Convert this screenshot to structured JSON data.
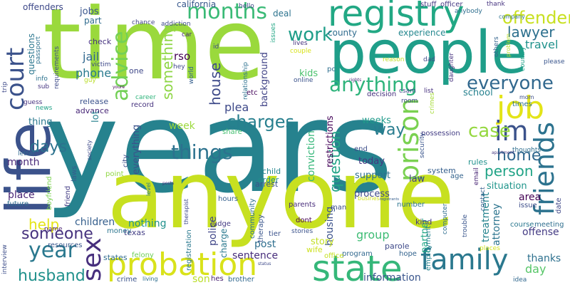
{
  "palette": [
    "#440154",
    "#482878",
    "#3e4989",
    "#31688e",
    "#26828e",
    "#1f9e89",
    "#35b779",
    "#6ece58",
    "#b5de2b",
    "#fde725"
  ],
  "words": [
    {
      "text": "years",
      "color": "#26828e"
    },
    {
      "text": "time",
      "color": "#9ad93c"
    },
    {
      "text": "anyone",
      "color": "#c7e020"
    },
    {
      "text": "people",
      "color": "#1f9e89"
    },
    {
      "text": "life",
      "color": "#3b528b"
    },
    {
      "text": "registry",
      "color": "#22a884"
    },
    {
      "text": "state",
      "color": "#35b779"
    },
    {
      "text": "probation",
      "color": "#d9e21a"
    },
    {
      "text": "family",
      "color": "#2a788e"
    },
    {
      "text": "job",
      "color": "#e3e418"
    },
    {
      "text": "friends",
      "color": "#2c728e"
    },
    {
      "text": "prison",
      "color": "#7ad151"
    },
    {
      "text": "im",
      "color": "#3b528b"
    },
    {
      "text": "sex",
      "color": "#472f7d"
    },
    {
      "text": "court",
      "color": "#3b528b"
    },
    {
      "text": "months",
      "color": "#3aba76"
    },
    {
      "text": "advice",
      "color": "#73d056"
    },
    {
      "text": "year",
      "color": "#2a788e"
    },
    {
      "text": "things",
      "color": "#2c728e"
    },
    {
      "text": "anything",
      "color": "#2fb47c"
    },
    {
      "text": "work",
      "color": "#1f9e89"
    },
    {
      "text": "offender",
      "color": "#c8e020"
    },
    {
      "text": "everyone",
      "color": "#31688e"
    },
    {
      "text": "case",
      "color": "#95d840"
    },
    {
      "text": "charges",
      "color": "#277f8e"
    },
    {
      "text": "someone",
      "color": "#46327e"
    },
    {
      "text": "husband",
      "color": "#21918c"
    },
    {
      "text": "home",
      "color": "#31688e"
    },
    {
      "text": "lawyer",
      "color": "#2d708e"
    },
    {
      "text": "person",
      "color": "#20a386"
    },
    {
      "text": "days",
      "color": "#2c728e"
    },
    {
      "text": "way",
      "color": "#287c8e"
    },
    {
      "text": "house",
      "color": "#3e4a89"
    },
    {
      "text": "something",
      "color": "#8ed645"
    },
    {
      "text": "help",
      "color": "#e5e419"
    },
    {
      "text": "travel",
      "color": "#20928c"
    },
    {
      "text": "question",
      "color": "#20a386"
    },
    {
      "text": "jail",
      "color": "#31688e"
    },
    {
      "text": "phone",
      "color": "#297a8e"
    },
    {
      "text": "rso",
      "color": "#440154"
    },
    {
      "text": "week",
      "color": "#9bd93c"
    },
    {
      "text": "plea",
      "color": "#3e4989"
    },
    {
      "text": "month",
      "color": "#482878"
    },
    {
      "text": "place",
      "color": "#482475"
    },
    {
      "text": "nothing",
      "color": "#21918c"
    },
    {
      "text": "children",
      "color": "#355f8d"
    },
    {
      "text": "group",
      "color": "#3dbc74"
    },
    {
      "text": "day",
      "color": "#56c667"
    },
    {
      "text": "thanks",
      "color": "#2d708e"
    },
    {
      "text": "information",
      "color": "#39558c"
    },
    {
      "text": "post",
      "color": "#2e6e8e"
    },
    {
      "text": "sentence",
      "color": "#472d7b"
    },
    {
      "text": "police",
      "color": "#404688"
    },
    {
      "text": "son",
      "color": "#bade28"
    },
    {
      "text": "treatment",
      "color": "#25848e"
    },
    {
      "text": "offense",
      "color": "#443b84"
    },
    {
      "text": "area",
      "color": "#440154"
    },
    {
      "text": "attorney",
      "color": "#2b748e"
    },
    {
      "text": "partner",
      "color": "#22a785"
    },
    {
      "text": "conviction",
      "color": "#35b779"
    },
    {
      "text": "housing",
      "color": "#3b528b"
    },
    {
      "text": "restrictions",
      "color": "#450559"
    },
    {
      "text": "today",
      "color": "#453882"
    },
    {
      "text": "story",
      "color": "#c2df23"
    },
    {
      "text": "support",
      "color": "#2d708e"
    },
    {
      "text": "weeks",
      "color": "#1f9a8a"
    },
    {
      "text": "process",
      "color": "#3f4889"
    },
    {
      "text": "law",
      "color": "#433e85"
    },
    {
      "text": "situation",
      "color": "#1f958b"
    },
    {
      "text": "school",
      "color": "#26818e"
    },
    {
      "text": "thing",
      "color": "#2a788e"
    },
    {
      "text": "jobs",
      "color": "#39558c"
    },
    {
      "text": "background",
      "color": "#414487"
    },
    {
      "text": "kids",
      "color": "#4ac16d"
    },
    {
      "text": "everything",
      "color": "#3b528b"
    },
    {
      "text": "experience",
      "color": "#24878e"
    },
    {
      "text": "county",
      "color": "#2f6c8e"
    },
    {
      "text": "deal",
      "color": "#2c738e"
    },
    {
      "text": "questions",
      "color": "#2a768e"
    },
    {
      "text": "offenders",
      "color": "#3e4989"
    },
    {
      "text": "california",
      "color": "#38588c"
    },
    {
      "text": "part",
      "color": "#2f6b8e"
    },
    {
      "text": "check",
      "color": "#46327e"
    },
    {
      "text": "advance",
      "color": "#482677"
    },
    {
      "text": "release",
      "color": "#3b528b"
    },
    {
      "text": "record",
      "color": "#46327e"
    },
    {
      "text": "wife",
      "color": "#cde11d"
    },
    {
      "text": "charge",
      "color": "#2a788e"
    },
    {
      "text": "parole",
      "color": "#3e4989"
    },
    {
      "text": "texas",
      "color": "#433e85"
    },
    {
      "text": "states",
      "color": "#2f6b8e"
    },
    {
      "text": "crime",
      "color": "#3a538b"
    },
    {
      "text": "felony",
      "color": "#6ece58"
    },
    {
      "text": "resources",
      "color": "#39568c"
    },
    {
      "text": "arrest",
      "color": "#3a538b"
    },
    {
      "text": "child",
      "color": "#24868e"
    },
    {
      "text": "order",
      "color": "#21908d"
    },
    {
      "text": "system",
      "color": "#355f8d"
    },
    {
      "text": "rules",
      "color": "#21918c"
    },
    {
      "text": "kind",
      "color": "#443983"
    },
    {
      "text": "employment",
      "color": "#25838e"
    },
    {
      "text": "man",
      "color": "#3d4e8a"
    },
    {
      "text": "parents",
      "color": "#472c7a"
    },
    {
      "text": "hope",
      "color": "#33638d"
    },
    {
      "text": "program",
      "color": "#31688e"
    },
    {
      "text": "registration",
      "color": "#2a788e"
    },
    {
      "text": "community",
      "color": "#2e6f8e"
    },
    {
      "text": "therapy",
      "color": "#39558c"
    },
    {
      "text": "judge",
      "color": "#443a83"
    },
    {
      "text": "money",
      "color": "#2b758e"
    },
    {
      "text": "future",
      "color": "#2f6c8e"
    },
    {
      "text": "friend",
      "color": "#433d84"
    },
    {
      "text": "boyfriend",
      "color": "#7cd250"
    },
    {
      "text": "laws",
      "color": "#365c8d"
    },
    {
      "text": "brother",
      "color": "#31688e"
    },
    {
      "text": "hes",
      "color": "#482071"
    },
    {
      "text": "dont",
      "color": "#440154"
    },
    {
      "text": "office",
      "color": "#c5e021"
    },
    {
      "text": "share",
      "color": "#44bf70"
    },
    {
      "text": "etc",
      "color": "#46085c"
    },
    {
      "text": "tier",
      "color": "#3b528b"
    },
    {
      "text": "pc",
      "color": "#2e6e8e"
    },
    {
      "text": "date",
      "color": "#3f4788"
    },
    {
      "text": "issue",
      "color": "#3d4d8a"
    },
    {
      "text": "possession",
      "color": "#433d84"
    },
    {
      "text": "decision",
      "color": "#46307e"
    },
    {
      "text": "times",
      "color": "#2d718e"
    },
    {
      "text": "end",
      "color": "#3d4e8a"
    },
    {
      "text": "age",
      "color": "#33638d"
    },
    {
      "text": "number",
      "color": "#2b748e"
    },
    {
      "text": "point",
      "color": "#90d743"
    },
    {
      "text": "city",
      "color": "#3d4e8a"
    },
    {
      "text": "hours",
      "color": "#34608d"
    },
    {
      "text": "course",
      "color": "#2a778e"
    },
    {
      "text": "meeting",
      "color": "#2e6e8e"
    },
    {
      "text": "places",
      "color": "#d2e21b"
    },
    {
      "text": "idea",
      "color": "#31688e"
    },
    {
      "text": "contact",
      "color": "#355e8d"
    },
    {
      "text": "email",
      "color": "#482475"
    },
    {
      "text": "computer",
      "color": "#2e6d8e"
    },
    {
      "text": "trouble",
      "color": "#39558c"
    },
    {
      "text": "stories",
      "color": "#3b528b"
    },
    {
      "text": "name",
      "color": "#482173"
    },
    {
      "text": "letter",
      "color": "#31688e"
    },
    {
      "text": "guess",
      "color": "#46337f"
    },
    {
      "text": "news",
      "color": "#1fa188"
    },
    {
      "text": "sub",
      "color": "#453581"
    },
    {
      "text": "info",
      "color": "#2c728e"
    },
    {
      "text": "requirements",
      "color": "#3e4a89"
    },
    {
      "text": "passport",
      "color": "#2d718e"
    },
    {
      "text": "chance",
      "color": "#414487"
    },
    {
      "text": "addiction",
      "color": "#3e4a89"
    },
    {
      "text": "car",
      "color": "#482878"
    },
    {
      "text": "id",
      "color": "#3e4989"
    },
    {
      "text": "hey",
      "color": "#3f4889"
    },
    {
      "text": "world",
      "color": "#355e8d"
    },
    {
      "text": "relationship",
      "color": "#2c718e"
    },
    {
      "text": "hello",
      "color": "#3f4889"
    },
    {
      "text": "issues",
      "color": "#22a785"
    },
    {
      "text": "lives",
      "color": "#46327e"
    },
    {
      "text": "couple",
      "color": "#d8e219"
    },
    {
      "text": "online",
      "color": "#3b528b"
    },
    {
      "text": "room",
      "color": "#3e4a89"
    },
    {
      "text": "csam",
      "color": "#3e4989"
    },
    {
      "text": "list",
      "color": "#46307e"
    },
    {
      "text": "reason",
      "color": "#c0df25"
    },
    {
      "text": "dad",
      "color": "#3e4a89"
    },
    {
      "text": "officer",
      "color": "#453882"
    },
    {
      "text": "stuff",
      "color": "#453882"
    },
    {
      "text": "anybody",
      "color": "#2e6e8e"
    },
    {
      "text": "thank",
      "color": "#46337f"
    },
    {
      "text": "company",
      "color": "#2d718e"
    },
    {
      "text": "others",
      "color": "#33638d"
    },
    {
      "text": "problem",
      "color": "#b8de29"
    },
    {
      "text": "country",
      "color": "#1fa088"
    },
    {
      "text": "please",
      "color": "#39558c"
    },
    {
      "text": "daughter",
      "color": "#46327e"
    },
    {
      "text": "mom",
      "color": "#3d4e8a"
    },
    {
      "text": "thoughts",
      "color": "#2e6e8e"
    },
    {
      "text": "apartment",
      "color": "#453882"
    },
    {
      "text": "security",
      "color": "#39558c"
    },
    {
      "text": "crimes",
      "color": "#a5db36"
    },
    {
      "text": "rights",
      "color": "#482878"
    },
    {
      "text": "youre",
      "color": "#440154"
    },
    {
      "text": "career",
      "color": "#30b57c"
    },
    {
      "text": "victim",
      "color": "#3e4a89"
    },
    {
      "text": "guy",
      "color": "#bade28"
    },
    {
      "text": "one",
      "color": "#3f4889"
    },
    {
      "text": "lot",
      "color": "#26818e"
    },
    {
      "text": "society",
      "color": "#3e4a89"
    },
    {
      "text": "level",
      "color": "#2a778e"
    },
    {
      "text": "posts",
      "color": "#46307e"
    },
    {
      "text": "therapist",
      "color": "#3e4989"
    },
    {
      "text": "living",
      "color": "#2e6e8e"
    },
    {
      "text": "status",
      "color": "#3e4a89"
    },
    {
      "text": "interview",
      "color": "#3d4e8a"
    },
    {
      "text": "trip",
      "color": "#3e4989"
    },
    {
      "text": "business",
      "color": "#d1e11c"
    },
    {
      "text": "registrants",
      "color": "#355e8d"
    }
  ]
}
